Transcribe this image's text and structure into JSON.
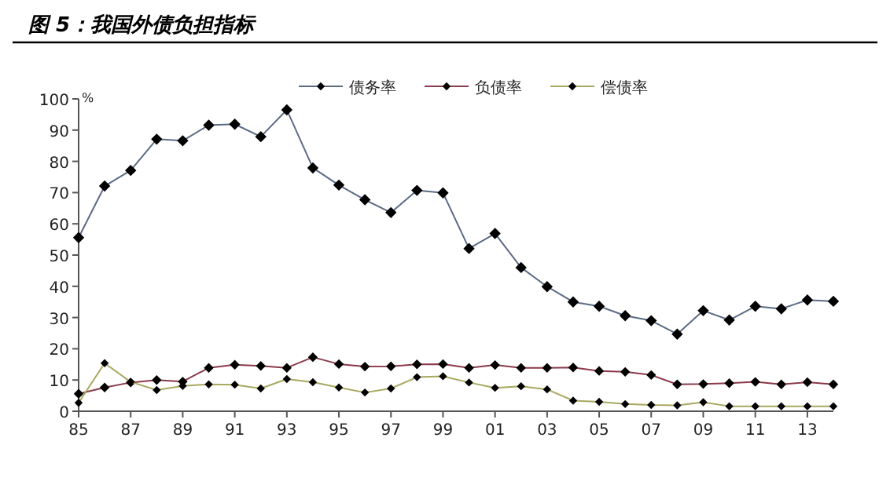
{
  "chart_data": {
    "type": "line",
    "title": "图 5：我国外债负担指标",
    "ylabel": "%",
    "x": [
      1985,
      1986,
      1987,
      1988,
      1989,
      1990,
      1991,
      1992,
      1993,
      1994,
      1995,
      1996,
      1997,
      1998,
      1999,
      2000,
      2001,
      2002,
      2003,
      2004,
      2005,
      2006,
      2007,
      2008,
      2009,
      2010,
      2011,
      2012,
      2013,
      2014
    ],
    "series": [
      {
        "name": "债务率",
        "color": "#5b6b85",
        "values": [
          55.6,
          72.1,
          77.1,
          87.1,
          86.6,
          91.6,
          91.9,
          87.9,
          96.5,
          77.9,
          72.4,
          67.7,
          63.6,
          70.7,
          69.9,
          52.1,
          56.9,
          46.0,
          39.9,
          35.0,
          33.6,
          30.6,
          29.0,
          24.7,
          32.2,
          29.2,
          33.6,
          32.8,
          35.6,
          35.2
        ]
      },
      {
        "name": "负债率",
        "color": "#8a3a4a",
        "values": [
          5.6,
          7.6,
          9.2,
          10.0,
          9.5,
          13.9,
          14.9,
          14.5,
          13.9,
          17.3,
          15.1,
          14.3,
          14.4,
          15.0,
          15.1,
          13.9,
          14.8,
          13.9,
          13.9,
          14.0,
          12.9,
          12.6,
          11.6,
          8.6,
          8.7,
          9.0,
          9.4,
          8.6,
          9.3,
          8.6
        ]
      },
      {
        "name": "偿债率",
        "color": "#a8a860",
        "values": [
          2.7,
          15.4,
          9.4,
          6.8,
          8.1,
          8.6,
          8.5,
          7.3,
          10.3,
          9.3,
          7.6,
          6.0,
          7.3,
          10.9,
          11.2,
          9.2,
          7.5,
          8.0,
          7.0,
          3.4,
          3.0,
          2.3,
          2.0,
          1.9,
          2.9,
          1.6,
          1.6,
          1.6,
          1.6,
          1.6
        ]
      }
    ],
    "xlim": [
      1985,
      2014
    ],
    "xticks": [
      {
        "value": 1985,
        "label": "85"
      },
      {
        "value": 1987,
        "label": "87"
      },
      {
        "value": 1989,
        "label": "89"
      },
      {
        "value": 1991,
        "label": "91"
      },
      {
        "value": 1993,
        "label": "93"
      },
      {
        "value": 1995,
        "label": "95"
      },
      {
        "value": 1997,
        "label": "97"
      },
      {
        "value": 1999,
        "label": "99"
      },
      {
        "value": 2001,
        "label": "01"
      },
      {
        "value": 2003,
        "label": "03"
      },
      {
        "value": 2005,
        "label": "05"
      },
      {
        "value": 2007,
        "label": "07"
      },
      {
        "value": 2009,
        "label": "09"
      },
      {
        "value": 2011,
        "label": "11"
      },
      {
        "value": 2013,
        "label": "13"
      }
    ],
    "ylim": [
      0,
      100
    ],
    "yticks": [
      0,
      10,
      20,
      30,
      40,
      50,
      60,
      70,
      80,
      90,
      100
    ],
    "marker": "diamond",
    "line_style": "solid",
    "grid": false,
    "legend": "top"
  }
}
